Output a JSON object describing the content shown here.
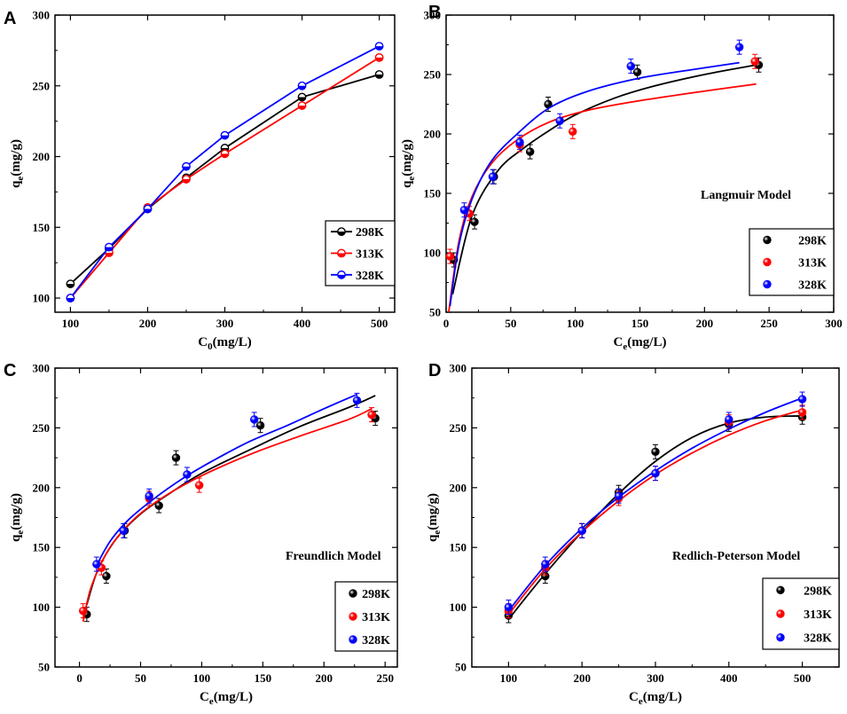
{
  "figure": {
    "colors": {
      "298K": "#000000",
      "313K": "#ff0000",
      "328K": "#0000ff"
    }
  },
  "chart_data": [
    {
      "id": "A",
      "type": "line",
      "panel_letter": "A",
      "xlabel_main": "C",
      "xlabel_sub": "0",
      "xlabel_tail": "(mg/L)",
      "ylabel_main": "q",
      "ylabel_sub": "e",
      "ylabel_tail": "(mg/g)",
      "xlim": [
        80,
        520
      ],
      "ylim": [
        90,
        300
      ],
      "xticks": [
        100,
        200,
        300,
        400,
        500
      ],
      "yticks": [
        100,
        150,
        200,
        250,
        300
      ],
      "legend": {
        "position": "bottom-right",
        "style": "line",
        "entries": [
          "298K",
          "313K",
          "328K"
        ]
      },
      "series": [
        {
          "name": "298K",
          "x": [
            100,
            150,
            200,
            250,
            300,
            400,
            500
          ],
          "y": [
            110,
            135,
            163,
            185,
            206,
            242,
            258
          ]
        },
        {
          "name": "313K",
          "x": [
            100,
            150,
            200,
            250,
            300,
            400,
            500
          ],
          "y": [
            100,
            132,
            164,
            184,
            202,
            236,
            270
          ]
        },
        {
          "name": "328K",
          "x": [
            100,
            150,
            200,
            250,
            300,
            400,
            500
          ],
          "y": [
            100,
            136,
            163,
            193,
            215,
            250,
            278
          ]
        }
      ]
    },
    {
      "id": "B",
      "type": "scatter",
      "panel_letter": "B",
      "annotation": "Langmuir Model",
      "xlabel_main": "C",
      "xlabel_sub": "e",
      "xlabel_tail": "(mg/L)",
      "ylabel_main": "q",
      "ylabel_sub": "e",
      "ylabel_tail": "(mg/g)",
      "xlim": [
        0,
        300
      ],
      "ylim": [
        50,
        300
      ],
      "xticks": [
        0,
        50,
        100,
        150,
        200,
        250,
        300
      ],
      "yticks": [
        50,
        100,
        150,
        200,
        250,
        300
      ],
      "legend": {
        "position": "bottom-right",
        "style": "marker",
        "entries": [
          "298K",
          "313K",
          "328K"
        ]
      },
      "series": [
        {
          "name": "298K",
          "x": [
            6,
            22,
            37,
            65,
            79,
            148,
            242
          ],
          "y": [
            94,
            126,
            164,
            185,
            225,
            252,
            258
          ],
          "fit_x": [
            5,
            20,
            40,
            60,
            80,
            100,
            130,
            160,
            200,
            240
          ],
          "fit_y": [
            65,
            131,
            169,
            188,
            203,
            216,
            230,
            240,
            250,
            258
          ]
        },
        {
          "name": "313K",
          "x": [
            3,
            18,
            57,
            98,
            239
          ],
          "y": [
            97,
            133,
            191,
            202,
            261
          ],
          "fit_x": [
            2,
            10,
            20,
            35,
            55,
            80,
            110,
            150,
            200,
            240
          ],
          "fit_y": [
            50,
            110,
            147,
            175,
            195,
            210,
            220,
            228,
            236,
            242
          ]
        },
        {
          "name": "328K",
          "x": [
            14,
            36,
            57,
            88,
            143,
            227
          ],
          "y": [
            136,
            164,
            193,
            211,
            257,
            273
          ],
          "fit_x": [
            3,
            10,
            20,
            35,
            55,
            80,
            110,
            150,
            190,
            227
          ],
          "fit_y": [
            55,
            107,
            145,
            177,
            200,
            222,
            236,
            247,
            254,
            260
          ]
        }
      ]
    },
    {
      "id": "C",
      "type": "scatter",
      "panel_letter": "C",
      "annotation": "Freundlich Model",
      "xlabel_main": "C",
      "xlabel_sub": "e",
      "xlabel_tail": "(mg/L)",
      "ylabel_main": "q",
      "ylabel_sub": "e",
      "ylabel_tail": "(mg/g)",
      "xlim": [
        -20,
        260
      ],
      "ylim": [
        50,
        300
      ],
      "xticks": [
        0,
        50,
        100,
        150,
        200,
        250
      ],
      "yticks": [
        50,
        100,
        150,
        200,
        250,
        300
      ],
      "legend": {
        "position": "bottom-right",
        "style": "marker",
        "entries": [
          "298K",
          "313K",
          "328K"
        ]
      },
      "series": [
        {
          "name": "298K",
          "x": [
            6,
            22,
            37,
            65,
            79,
            148,
            242
          ],
          "y": [
            94,
            126,
            164,
            185,
            225,
            252,
            258
          ],
          "fit_x": [
            6,
            15,
            30,
            50,
            75,
            100,
            140,
            180,
            220,
            242
          ],
          "fit_y": [
            102,
            131,
            157,
            178,
            196,
            212,
            232,
            251,
            267,
            277
          ]
        },
        {
          "name": "313K",
          "x": [
            3,
            18,
            57,
            98,
            239
          ],
          "y": [
            97,
            133,
            191,
            202,
            261
          ],
          "fit_x": [
            3,
            10,
            25,
            45,
            70,
            100,
            140,
            180,
            220,
            239
          ],
          "fit_y": [
            88,
            118,
            150,
            174,
            193,
            210,
            228,
            243,
            257,
            266
          ]
        },
        {
          "name": "328K",
          "x": [
            14,
            36,
            57,
            88,
            143,
            227
          ],
          "y": [
            136,
            164,
            193,
            211,
            257,
            273
          ],
          "fit_x": [
            14,
            25,
            40,
            60,
            85,
            110,
            140,
            170,
            200,
            227
          ],
          "fit_y": [
            135,
            155,
            173,
            190,
            208,
            223,
            239,
            252,
            266,
            278
          ]
        }
      ]
    },
    {
      "id": "D",
      "type": "scatter",
      "panel_letter": "D",
      "annotation": "Redlich-Peterson Model",
      "xlabel_main": "C",
      "xlabel_sub": "e",
      "xlabel_tail": "(mg/L)",
      "ylabel_main": "q",
      "ylabel_sub": "e",
      "ylabel_tail": "(mg/g)",
      "xlim": [
        50,
        550
      ],
      "ylim": [
        50,
        300
      ],
      "xticks": [
        100,
        200,
        300,
        400,
        500
      ],
      "yticks": [
        50,
        100,
        150,
        200,
        250,
        300
      ],
      "legend": {
        "position": "bottom-right",
        "style": "marker",
        "entries": [
          "298K",
          "313K",
          "328K"
        ]
      },
      "series": [
        {
          "name": "298K",
          "x": [
            100,
            150,
            200,
            250,
            300,
            400,
            500
          ],
          "y": [
            93,
            126,
            164,
            196,
            230,
            253,
            259
          ],
          "fit_x": [
            100,
            150,
            200,
            250,
            300,
            350,
            400,
            450,
            500
          ],
          "fit_y": [
            90,
            128,
            163,
            195,
            222,
            242,
            254,
            259,
            260
          ]
        },
        {
          "name": "313K",
          "x": [
            100,
            150,
            200,
            250,
            300,
            400,
            500
          ],
          "y": [
            97,
            133,
            164,
            191,
            212,
            255,
            263
          ],
          "fit_x": [
            100,
            150,
            200,
            250,
            300,
            350,
            400,
            450,
            500
          ],
          "fit_y": [
            94,
            132,
            163,
            189,
            211,
            229,
            244,
            256,
            265
          ]
        },
        {
          "name": "328K",
          "x": [
            100,
            150,
            200,
            250,
            300,
            400,
            500
          ],
          "y": [
            100,
            136,
            164,
            193,
            212,
            257,
            274
          ],
          "fit_x": [
            100,
            150,
            200,
            250,
            300,
            350,
            400,
            450,
            500
          ],
          "fit_y": [
            97,
            135,
            166,
            192,
            214,
            233,
            249,
            263,
            275
          ]
        }
      ]
    }
  ]
}
